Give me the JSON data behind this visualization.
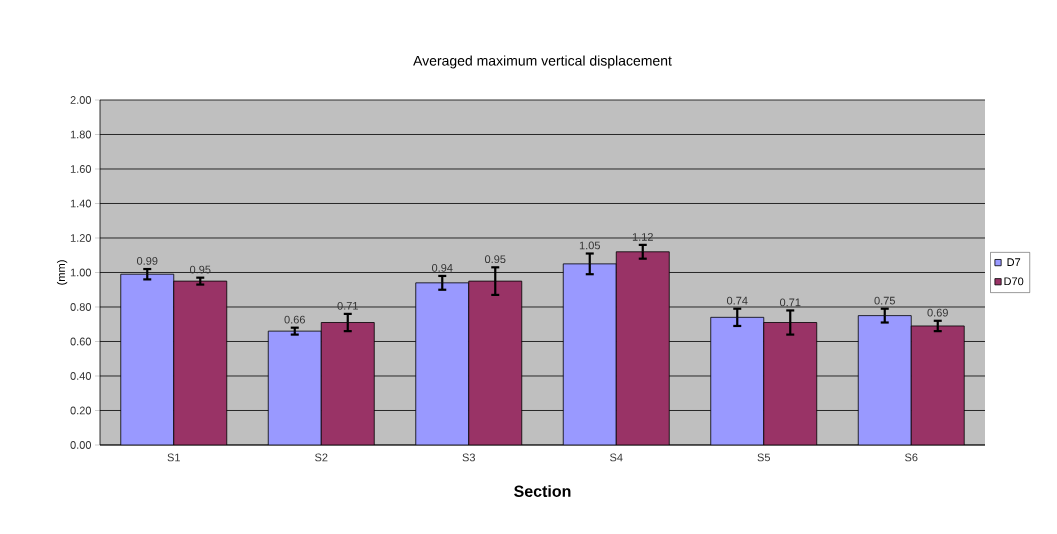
{
  "chart_data": {
    "type": "bar",
    "title": "Averaged maximum vertical displacement",
    "xlabel": "Section",
    "ylabel": "(mm)",
    "categories": [
      "S1",
      "S2",
      "S3",
      "S4",
      "S5",
      "S6"
    ],
    "series": [
      {
        "name": "D7",
        "color": "#9999ff",
        "values": [
          0.99,
          0.66,
          0.94,
          1.05,
          0.74,
          0.75
        ],
        "errors": [
          0.03,
          0.02,
          0.04,
          0.06,
          0.05,
          0.04
        ]
      },
      {
        "name": "D70",
        "color": "#993366",
        "values": [
          0.95,
          0.71,
          0.95,
          1.12,
          0.71,
          0.69
        ],
        "errors": [
          0.02,
          0.05,
          0.08,
          0.04,
          0.07,
          0.03
        ]
      }
    ],
    "ylim": [
      0,
      2
    ],
    "yticks": [
      {
        "value": 0,
        "label": "0.00"
      },
      {
        "value": 0.2,
        "label": "0.20"
      },
      {
        "value": 0.4,
        "label": "0.40"
      },
      {
        "value": 0.6,
        "label": "0.60"
      },
      {
        "value": 0.8,
        "label": "0.80"
      },
      {
        "value": 1,
        "label": "1.00"
      },
      {
        "value": 1.2,
        "label": "1.20"
      },
      {
        "value": 1.4,
        "label": "1.40"
      },
      {
        "value": 1.6,
        "label": "1.60"
      },
      {
        "value": 1.8,
        "label": "1.80"
      },
      {
        "value": 2,
        "label": "2.00"
      }
    ],
    "grid": "y",
    "legend": "right",
    "data_labels": true
  }
}
